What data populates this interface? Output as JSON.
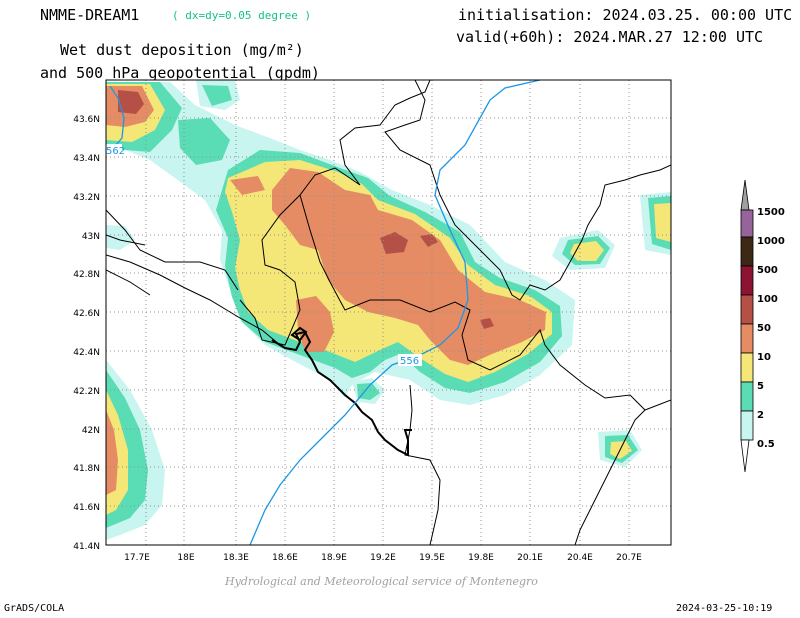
{
  "header": {
    "model": "NMME-DREAM1",
    "resolution": "( dx=dy=0.05 degree )",
    "title_line1": "Wet dust deposition (mg/m²)",
    "title_line2": "and 500 hPa geopotential (gpdm)",
    "init": "initialisation: 2024.03.25. 00:00 UTC",
    "valid": "valid(+60h): 2024.MAR.27 12:00 UTC"
  },
  "map": {
    "lat_labels": [
      "43.6N",
      "43.4N",
      "43.2N",
      "43N",
      "42.8N",
      "42.6N",
      "42.4N",
      "42.2N",
      "42N",
      "41.8N",
      "41.6N",
      "41.4N"
    ],
    "lon_labels": [
      "17.7E",
      "18E",
      "18.3E",
      "18.6E",
      "18.9E",
      "19.2E",
      "19.5E",
      "19.8E",
      "20.1E",
      "20.4E",
      "20.7E"
    ],
    "contour_labels": [
      "556",
      "562"
    ],
    "colors": {
      "c0_5": "#c8f5f0",
      "c2": "#5adcb4",
      "c5": "#f5e678",
      "c10": "#e68c64",
      "c50": "#b45046",
      "c100": "#8c1432",
      "c500": "#3c2814",
      "c1000": "#96649b",
      "c1500": "#a0a0a0",
      "contour": "#1e96e6"
    }
  },
  "legend": {
    "labels": [
      "1500",
      "1000",
      "500",
      "100",
      "50",
      "10",
      "5",
      "2",
      "0.5"
    ]
  },
  "footer": {
    "credit": "Hydrological and Meteorological service of Montenegro",
    "software": "GrADS/COLA",
    "timestamp": "2024-03-25-10:19"
  }
}
